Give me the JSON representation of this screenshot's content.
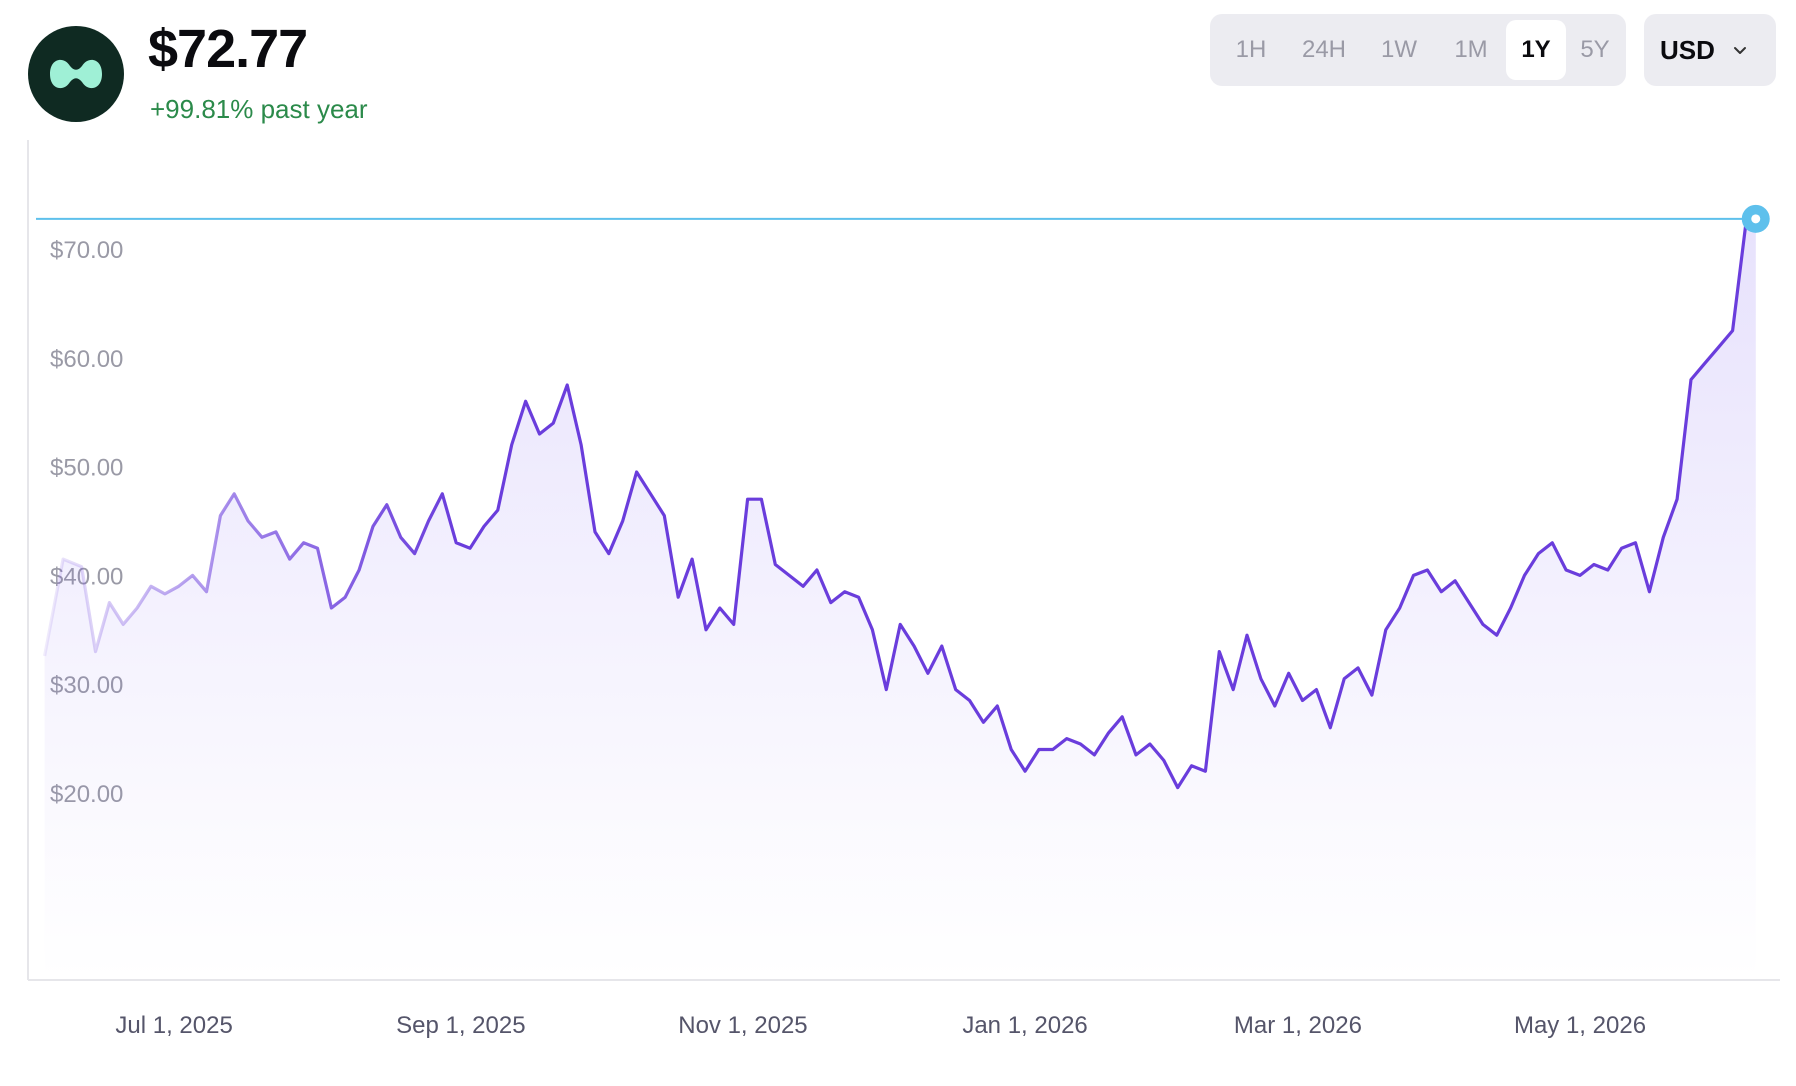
{
  "header": {
    "price": "$72.77",
    "change": "+99.81% past year"
  },
  "range_selector": {
    "options": [
      "1H",
      "24H",
      "1W",
      "1M",
      "1Y",
      "5Y"
    ],
    "active": "1Y"
  },
  "currency": {
    "value": "USD"
  },
  "colors": {
    "line": "#6a3ddc",
    "area_fill": "#7b5cf0",
    "current_marker": "#5ec0ec",
    "positive_change": "#2b8a4a",
    "logo_bg": "#0f2a22",
    "logo_mark": "#9ff0d6"
  },
  "icons": {
    "logo": "token-logo-icon",
    "dropdown": "chevron-down-icon"
  },
  "chart_data": {
    "type": "area",
    "current_value": 72.77,
    "x_tick_labels": [
      "Jul 1, 2025",
      "Sep 1, 2025",
      "Nov 1, 2025",
      "Jan 1, 2026",
      "Mar 1, 2026",
      "May 1, 2026"
    ],
    "y_tick_labels": [
      "$20.00",
      "$30.00",
      "$40.00",
      "$50.00",
      "$60.00",
      "$70.00"
    ],
    "y_ticks": [
      20,
      30,
      40,
      50,
      60,
      70
    ],
    "ylim": [
      15,
      80
    ],
    "xlim": [
      "2025-06-02",
      "2026-06-10"
    ],
    "grid": false,
    "series": [
      {
        "x": [
          "2025-06-03",
          "2025-06-07",
          "2025-06-11",
          "2025-06-14",
          "2025-06-17",
          "2025-06-20",
          "2025-06-23",
          "2025-06-26",
          "2025-06-29",
          "2025-07-02",
          "2025-07-05",
          "2025-07-08",
          "2025-07-11",
          "2025-07-14",
          "2025-07-17",
          "2025-07-20",
          "2025-07-23",
          "2025-07-26",
          "2025-07-29",
          "2025-08-01",
          "2025-08-04",
          "2025-08-07",
          "2025-08-10",
          "2025-08-13",
          "2025-08-16",
          "2025-08-19",
          "2025-08-22",
          "2025-08-25",
          "2025-08-28",
          "2025-08-31",
          "2025-09-03",
          "2025-09-06",
          "2025-09-09",
          "2025-09-12",
          "2025-09-15",
          "2025-09-18",
          "2025-09-21",
          "2025-09-24",
          "2025-09-27",
          "2025-09-30",
          "2025-10-03",
          "2025-10-06",
          "2025-10-09",
          "2025-10-12",
          "2025-10-15",
          "2025-10-18",
          "2025-10-21",
          "2025-10-24",
          "2025-10-27",
          "2025-10-30",
          "2025-11-02",
          "2025-11-05",
          "2025-11-08",
          "2025-11-11",
          "2025-11-14",
          "2025-11-17",
          "2025-11-20",
          "2025-11-23",
          "2025-11-26",
          "2025-11-29",
          "2025-12-02",
          "2025-12-05",
          "2025-12-08",
          "2025-12-11",
          "2025-12-14",
          "2025-12-17",
          "2025-12-20",
          "2025-12-23",
          "2025-12-26",
          "2025-12-29",
          "2026-01-01",
          "2026-01-04",
          "2026-01-07",
          "2026-01-10",
          "2026-01-13",
          "2026-01-16",
          "2026-01-19",
          "2026-01-22",
          "2026-01-25",
          "2026-01-28",
          "2026-01-31",
          "2026-02-03",
          "2026-02-06",
          "2026-02-09",
          "2026-02-12",
          "2026-02-15",
          "2026-02-18",
          "2026-02-21",
          "2026-02-24",
          "2026-02-27",
          "2026-03-02",
          "2026-03-05",
          "2026-03-08",
          "2026-03-11",
          "2026-03-14",
          "2026-03-17",
          "2026-03-20",
          "2026-03-23",
          "2026-03-26",
          "2026-03-29",
          "2026-04-01",
          "2026-04-04",
          "2026-04-07",
          "2026-04-10",
          "2026-04-13",
          "2026-04-16",
          "2026-04-19",
          "2026-04-22",
          "2026-04-25",
          "2026-04-28",
          "2026-05-01",
          "2026-05-04",
          "2026-05-07",
          "2026-05-10",
          "2026-05-13",
          "2026-05-16",
          "2026-05-19",
          "2026-05-22",
          "2026-05-25",
          "2026-05-28",
          "2026-05-31",
          "2026-06-03",
          "2026-06-06",
          "2026-06-08"
        ],
        "y": [
          32.6,
          41.5,
          40.8,
          33.0,
          37.5,
          35.5,
          37.0,
          39.0,
          38.3,
          39.0,
          40.0,
          38.5,
          45.5,
          47.5,
          45.0,
          43.5,
          44.0,
          41.5,
          43.0,
          42.5,
          37.0,
          38.0,
          40.5,
          44.5,
          46.5,
          43.5,
          42.0,
          45.0,
          47.5,
          43.0,
          42.5,
          44.5,
          46.0,
          52.0,
          56.0,
          53.0,
          54.0,
          57.5,
          52.0,
          44.0,
          42.0,
          45.0,
          49.5,
          47.5,
          45.5,
          38.0,
          41.5,
          35.0,
          37.0,
          35.5,
          47.0,
          47.0,
          41.0,
          40.0,
          39.0,
          40.5,
          37.5,
          38.5,
          38.0,
          35.0,
          29.5,
          35.5,
          33.5,
          31.0,
          33.5,
          29.5,
          28.5,
          26.5,
          28.0,
          24.0,
          22.0,
          24.0,
          24.0,
          25.0,
          24.5,
          23.5,
          25.5,
          27.0,
          23.5,
          24.5,
          23.0,
          20.5,
          22.5,
          22.0,
          33.0,
          29.5,
          34.5,
          30.5,
          28.0,
          31.0,
          28.5,
          29.5,
          26.0,
          30.5,
          31.5,
          29.0,
          35.0,
          37.0,
          40.0,
          40.5,
          38.5,
          39.5,
          37.5,
          35.5,
          34.5,
          37.0,
          40.0,
          42.0,
          43.0,
          40.5,
          40.0,
          41.0,
          40.5,
          42.5,
          43.0,
          38.5,
          43.5,
          47.0,
          58.0,
          59.5,
          61.0,
          62.5,
          72.8,
          72.77
        ]
      }
    ]
  }
}
